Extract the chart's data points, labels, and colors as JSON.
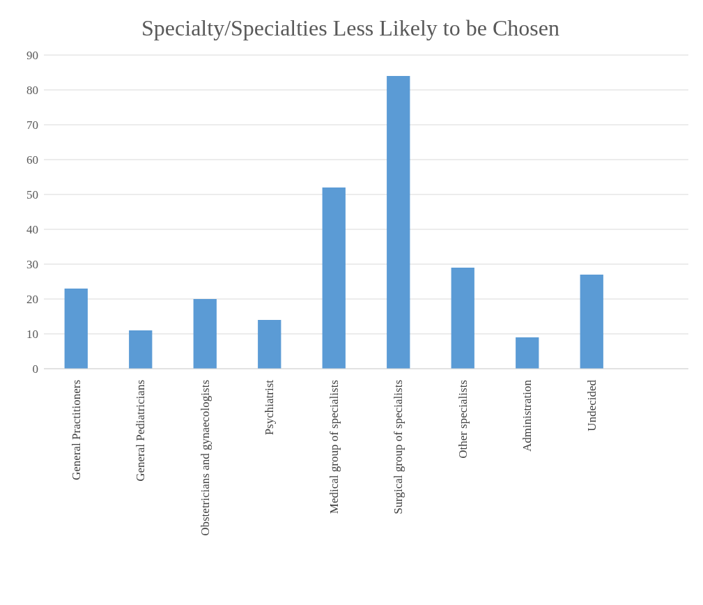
{
  "chart_data": {
    "type": "bar",
    "title": "Specialty/Specialties Less Likely to be Chosen",
    "categories": [
      "General Practitioners",
      "General Pediatricians",
      "Obstetricians and gynaecologists",
      "Psychiatrist",
      "Medical group of specialists",
      "Surgical group of specialists",
      "Other specialists",
      "Administration",
      "Undecided",
      null
    ],
    "values": [
      23,
      11,
      20,
      14,
      52,
      84,
      29,
      9,
      27,
      null
    ],
    "color": "#5b9bd5",
    "ylim": [
      0,
      90
    ],
    "yticks": [
      0,
      10,
      20,
      30,
      40,
      50,
      60,
      70,
      80,
      90
    ],
    "grid": "y"
  }
}
